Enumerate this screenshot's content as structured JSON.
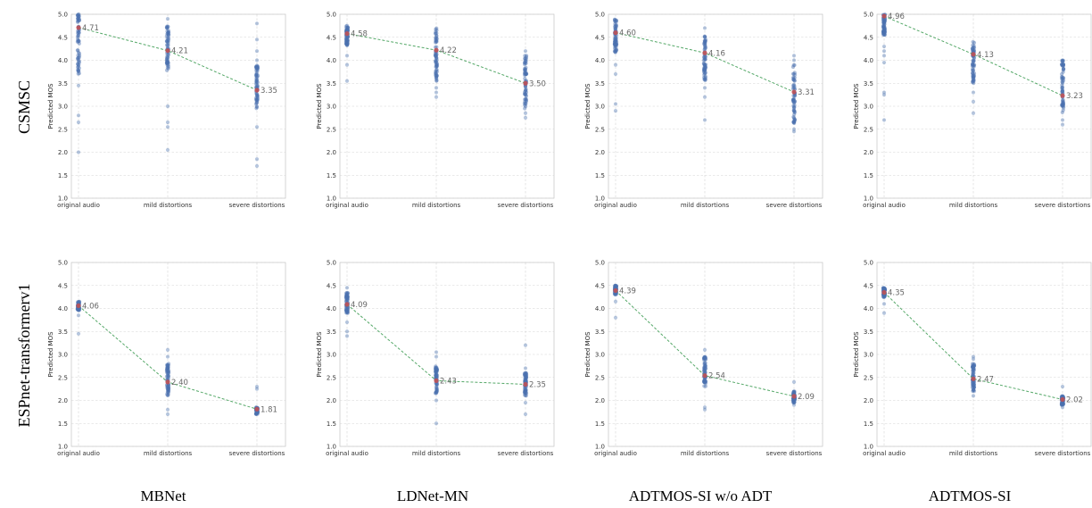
{
  "figure": {
    "row_labels": [
      "CSMSC",
      "ESPnet-transformerv1"
    ],
    "column_labels": [
      "MBNet",
      "LDNet-MN",
      "ADTMOS-SI w/o ADT",
      "ADTMOS-SI"
    ]
  },
  "chart_data": [
    {
      "type": "scatter",
      "row": "CSMSC",
      "column": "MBNet",
      "ylabel": "Predicted MOS",
      "ylim": [
        1.0,
        5.0
      ],
      "yticks": [
        "1.0",
        "1.5",
        "2.0",
        "2.5",
        "3.0",
        "3.5",
        "4.0",
        "4.5",
        "5.0"
      ],
      "categories": [
        "original audio",
        "mild distortions",
        "severe distortions"
      ],
      "means": [
        4.71,
        4.21,
        3.35
      ],
      "mean_labels": [
        "4.71",
        "4.21",
        "3.35"
      ],
      "dense_ranges": [
        [
          3.7,
          5.0
        ],
        [
          3.75,
          4.75
        ],
        [
          2.95,
          3.9
        ]
      ],
      "outliers": [
        [
          2.0,
          2.65,
          2.8,
          3.45
        ],
        [
          2.05,
          2.55,
          2.65,
          3.0,
          4.9
        ],
        [
          1.7,
          1.85,
          2.55,
          4.0,
          4.2,
          4.45,
          4.8
        ]
      ],
      "grid": true
    },
    {
      "type": "scatter",
      "row": "CSMSC",
      "column": "LDNet-MN",
      "ylabel": "Predicted MOS",
      "ylim": [
        1.0,
        5.0
      ],
      "yticks": [
        "1.0",
        "1.5",
        "2.0",
        "2.5",
        "3.0",
        "3.5",
        "4.0",
        "4.5",
        "5.0"
      ],
      "categories": [
        "original audio",
        "mild distortions",
        "severe distortions"
      ],
      "means": [
        4.58,
        4.22,
        3.5
      ],
      "mean_labels": [
        "4.58",
        "4.22",
        "3.50"
      ],
      "dense_ranges": [
        [
          4.3,
          4.75
        ],
        [
          3.55,
          4.7
        ],
        [
          2.95,
          4.1
        ]
      ],
      "outliers": [
        [
          3.55,
          3.9,
          4.1
        ],
        [
          3.2,
          3.3,
          3.4
        ],
        [
          2.75,
          2.85,
          4.2
        ]
      ],
      "grid": true
    },
    {
      "type": "scatter",
      "row": "CSMSC",
      "column": "ADTMOS-SI w/o ADT",
      "ylabel": "Predicted MOS",
      "ylim": [
        1.0,
        5.0
      ],
      "yticks": [
        "1.0",
        "1.5",
        "2.0",
        "2.5",
        "3.0",
        "3.5",
        "4.0",
        "4.5",
        "5.0"
      ],
      "categories": [
        "original audio",
        "mild distortions",
        "severe distortions"
      ],
      "means": [
        4.6,
        4.16,
        3.31
      ],
      "mean_labels": [
        "4.60",
        "4.16",
        "3.31"
      ],
      "dense_ranges": [
        [
          4.15,
          4.9
        ],
        [
          3.55,
          4.55
        ],
        [
          2.6,
          3.9
        ]
      ],
      "outliers": [
        [
          2.9,
          3.05,
          3.7,
          3.9
        ],
        [
          2.7,
          3.2,
          3.4,
          4.7
        ],
        [
          2.45,
          2.5,
          4.0,
          4.1
        ]
      ],
      "grid": true
    },
    {
      "type": "scatter",
      "row": "CSMSC",
      "column": "ADTMOS-SI",
      "ylabel": "Predicted MOS",
      "ylim": [
        1.0,
        5.0
      ],
      "yticks": [
        "1.0",
        "1.5",
        "2.0",
        "2.5",
        "3.0",
        "3.5",
        "4.0",
        "4.5",
        "5.0"
      ],
      "categories": [
        "original audio",
        "mild distortions",
        "severe distortions"
      ],
      "means": [
        4.96,
        4.13,
        3.23
      ],
      "mean_labels": [
        "4.96",
        "4.13",
        "3.23"
      ],
      "dense_ranges": [
        [
          4.55,
          5.0
        ],
        [
          3.5,
          4.4
        ],
        [
          2.85,
          4.0
        ]
      ],
      "outliers": [
        [
          2.7,
          3.25,
          3.3,
          3.95,
          4.1,
          4.2,
          4.3
        ],
        [
          2.85,
          3.1,
          3.3
        ],
        [
          2.6,
          2.7,
          4.0
        ]
      ],
      "grid": true
    },
    {
      "type": "scatter",
      "row": "ESPnet-transformerv1",
      "column": "MBNet",
      "ylabel": "Predicted MOS",
      "ylim": [
        1.0,
        5.0
      ],
      "yticks": [
        "1.0",
        "1.5",
        "2.0",
        "2.5",
        "3.0",
        "3.5",
        "4.0",
        "4.5",
        "5.0"
      ],
      "categories": [
        "original audio",
        "mild distortions",
        "severe distortions"
      ],
      "means": [
        4.06,
        2.4,
        1.81
      ],
      "mean_labels": [
        "4.06",
        "2.40",
        "1.81"
      ],
      "dense_ranges": [
        [
          3.95,
          4.15
        ],
        [
          2.1,
          2.8
        ],
        [
          1.7,
          1.85
        ]
      ],
      "outliers": [
        [
          3.45,
          3.85
        ],
        [
          1.7,
          1.8,
          2.95,
          3.1
        ],
        [
          2.25,
          2.3
        ]
      ],
      "grid": true
    },
    {
      "type": "scatter",
      "row": "ESPnet-transformerv1",
      "column": "LDNet-MN",
      "ylabel": "Predicted MOS",
      "ylim": [
        1.0,
        5.0
      ],
      "yticks": [
        "1.0",
        "1.5",
        "2.0",
        "2.5",
        "3.0",
        "3.5",
        "4.0",
        "4.5",
        "5.0"
      ],
      "categories": [
        "original audio",
        "mild distortions",
        "severe distortions"
      ],
      "means": [
        4.09,
        2.43,
        2.35
      ],
      "mean_labels": [
        "4.09",
        "2.43",
        "2.35"
      ],
      "dense_ranges": [
        [
          3.9,
          4.35
        ],
        [
          2.15,
          2.75
        ],
        [
          2.1,
          2.6
        ]
      ],
      "outliers": [
        [
          3.4,
          3.5,
          3.7,
          4.45
        ],
        [
          1.5,
          2.0,
          2.95,
          3.05
        ],
        [
          1.7,
          1.95,
          2.7,
          3.2
        ]
      ],
      "grid": true
    },
    {
      "type": "scatter",
      "row": "ESPnet-transformerv1",
      "column": "ADTMOS-SI w/o ADT",
      "ylabel": "Predicted MOS",
      "ylim": [
        1.0,
        5.0
      ],
      "yticks": [
        "1.0",
        "1.5",
        "2.0",
        "2.5",
        "3.0",
        "3.5",
        "4.0",
        "4.5",
        "5.0"
      ],
      "categories": [
        "original audio",
        "mild distortions",
        "severe distortions"
      ],
      "means": [
        4.39,
        2.54,
        2.09
      ],
      "mean_labels": [
        "4.39",
        "2.54",
        "2.09"
      ],
      "dense_ranges": [
        [
          4.3,
          4.5
        ],
        [
          2.3,
          2.95
        ],
        [
          1.95,
          2.2
        ]
      ],
      "outliers": [
        [
          3.8,
          4.15
        ],
        [
          1.8,
          1.85,
          3.1
        ],
        [
          1.9,
          2.4
        ]
      ],
      "grid": true
    },
    {
      "type": "scatter",
      "row": "ESPnet-transformerv1",
      "column": "ADTMOS-SI",
      "ylabel": "Predicted MOS",
      "ylim": [
        1.0,
        5.0
      ],
      "yticks": [
        "1.0",
        "1.5",
        "2.0",
        "2.5",
        "3.0",
        "3.5",
        "4.0",
        "4.5",
        "5.0"
      ],
      "categories": [
        "original audio",
        "mild distortions",
        "severe distortions"
      ],
      "means": [
        4.35,
        2.47,
        2.02
      ],
      "mean_labels": [
        "4.35",
        "2.47",
        "2.02"
      ],
      "dense_ranges": [
        [
          4.25,
          4.45
        ],
        [
          2.2,
          2.8
        ],
        [
          1.9,
          2.1
        ]
      ],
      "outliers": [
        [
          3.9,
          4.1
        ],
        [
          2.1,
          2.9,
          2.95
        ],
        [
          1.85,
          2.3
        ]
      ],
      "grid": true
    }
  ],
  "colors": {
    "points": "#4c72b0",
    "mean_marker": "#c44e52",
    "trend_line": "#55a868",
    "grid": "#d4d4d4",
    "frame": "#cccccc"
  }
}
